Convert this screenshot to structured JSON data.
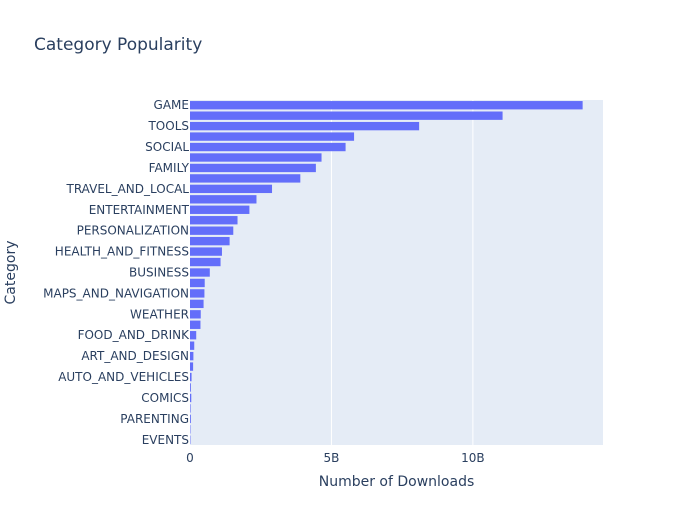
{
  "chart_data": {
    "type": "bar",
    "orientation": "horizontal",
    "title": "Category Popularity",
    "xlabel": "Number of Downloads",
    "ylabel": "Category",
    "xlim": [
      0,
      14600000000
    ],
    "xticks": [
      {
        "value": 0,
        "label": "0"
      },
      {
        "value": 5000000000,
        "label": "5B"
      },
      {
        "value": 10000000000,
        "label": "10B"
      }
    ],
    "grid": true,
    "legend": "none",
    "colors": {
      "bar": "#636efa",
      "plot_bg": "#e5ecf6",
      "grid": "#ffffff",
      "text": "#2a3f5f"
    },
    "categories": [
      "GAME",
      "",
      "TOOLS",
      "",
      "SOCIAL",
      "",
      "FAMILY",
      "",
      "TRAVEL_AND_LOCAL",
      "",
      "ENTERTAINMENT",
      "",
      "PERSONALIZATION",
      "",
      "HEALTH_AND_FITNESS",
      "",
      "BUSINESS",
      "",
      "MAPS_AND_NAVIGATION",
      "",
      "WEATHER",
      "",
      "FOOD_AND_DRINK",
      "",
      "ART_AND_DESIGN",
      "",
      "AUTO_AND_VEHICLES",
      "",
      "COMICS",
      "",
      "PARENTING",
      "",
      "EVENTS"
    ],
    "values": [
      13880000000,
      11050000000,
      8100000000,
      5800000000,
      5500000000,
      4650000000,
      4450000000,
      3900000000,
      2900000000,
      2350000000,
      2100000000,
      1680000000,
      1530000000,
      1400000000,
      1130000000,
      1080000000,
      700000000,
      520000000,
      510000000,
      480000000,
      380000000,
      370000000,
      220000000,
      150000000,
      120000000,
      110000000,
      55000000,
      30000000,
      45000000,
      20000000,
      30000000,
      15000000,
      15000000
    ]
  }
}
